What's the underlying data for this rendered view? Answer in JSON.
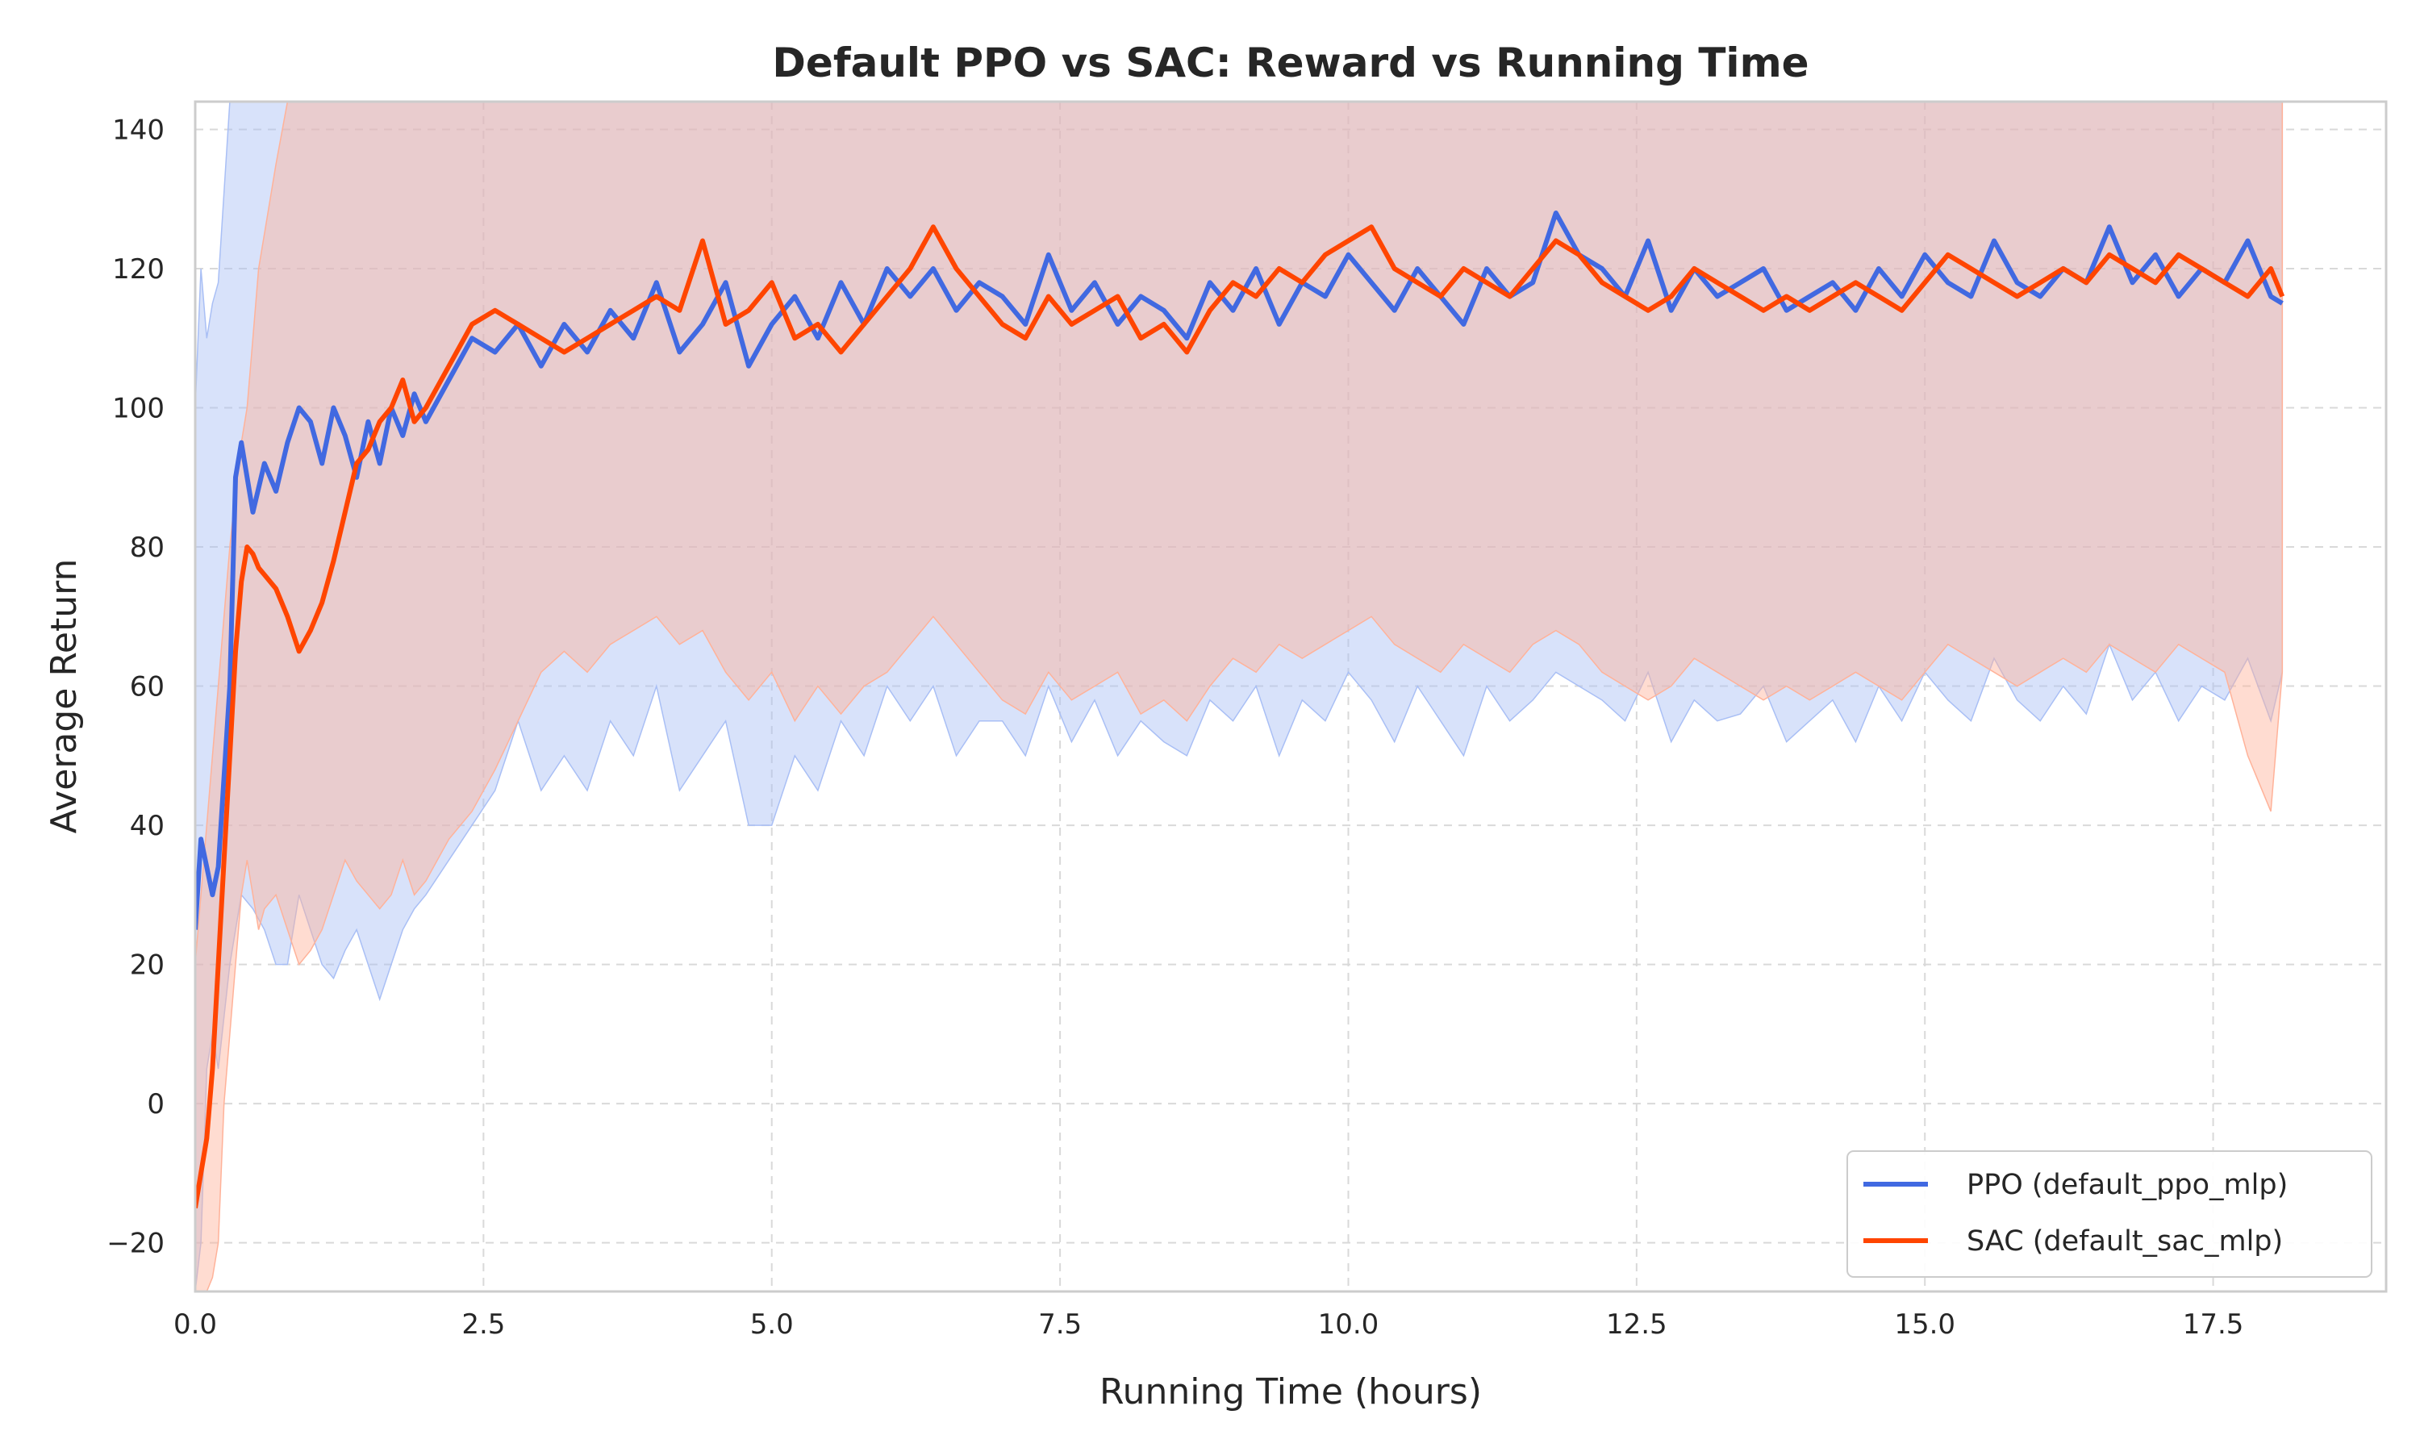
{
  "chart_data": {
    "type": "line",
    "title": "Default PPO vs SAC: Reward vs Running Time",
    "xlabel": "Running Time (hours)",
    "ylabel": "Average Return",
    "xlim": [
      0,
      19
    ],
    "ylim": [
      -27,
      144
    ],
    "xticks": [
      0,
      2.5,
      5,
      7.5,
      10,
      12.5,
      15,
      17.5
    ],
    "xtick_labels": [
      "0.0",
      "2.5",
      "5.0",
      "7.5",
      "10.0",
      "12.5",
      "15.0",
      "17.5"
    ],
    "yticks": [
      -20,
      0,
      20,
      40,
      60,
      80,
      100,
      120,
      140
    ],
    "ytick_labels": [
      "−20",
      "0",
      "20",
      "40",
      "60",
      "80",
      "100",
      "120",
      "140"
    ],
    "grid": true,
    "legend_position": "bottom-right",
    "series": [
      {
        "name": "PPO (default_ppo_mlp)",
        "color": "#4169E1",
        "band_color": "#a9bff5",
        "x": [
          0,
          0.05,
          0.1,
          0.15,
          0.2,
          0.3,
          0.35,
          0.4,
          0.5,
          0.6,
          0.7,
          0.8,
          0.9,
          1.0,
          1.1,
          1.2,
          1.3,
          1.4,
          1.5,
          1.6,
          1.7,
          1.8,
          1.9,
          2.0,
          2.2,
          2.4,
          2.6,
          2.8,
          3.0,
          3.2,
          3.4,
          3.6,
          3.8,
          4.0,
          4.2,
          4.4,
          4.6,
          4.8,
          5.0,
          5.2,
          5.4,
          5.6,
          5.8,
          6.0,
          6.2,
          6.4,
          6.6,
          6.8,
          7.0,
          7.2,
          7.4,
          7.6,
          7.8,
          8.0,
          8.2,
          8.4,
          8.6,
          8.8,
          9.0,
          9.2,
          9.4,
          9.6,
          9.8,
          10.0,
          10.2,
          10.4,
          10.6,
          10.8,
          11.0,
          11.2,
          11.4,
          11.6,
          11.8,
          12.0,
          12.2,
          12.4,
          12.6,
          12.8,
          13.0,
          13.2,
          13.4,
          13.6,
          13.8,
          14.0,
          14.2,
          14.4,
          14.6,
          14.8,
          15.0,
          15.2,
          15.4,
          15.6,
          15.8,
          16.0,
          16.2,
          16.4,
          16.6,
          16.8,
          17.0,
          17.2,
          17.4,
          17.6,
          17.8,
          18.0,
          18.1
        ],
        "mean": [
          25,
          38,
          34,
          30,
          34,
          60,
          90,
          95,
          85,
          92,
          88,
          95,
          100,
          98,
          92,
          100,
          96,
          90,
          98,
          92,
          100,
          96,
          102,
          98,
          104,
          110,
          108,
          112,
          106,
          112,
          108,
          114,
          110,
          118,
          108,
          112,
          118,
          106,
          112,
          116,
          110,
          118,
          112,
          120,
          116,
          120,
          114,
          118,
          116,
          112,
          122,
          114,
          118,
          112,
          116,
          114,
          110,
          118,
          114,
          120,
          112,
          118,
          116,
          122,
          118,
          114,
          120,
          116,
          112,
          120,
          116,
          118,
          128,
          122,
          120,
          116,
          124,
          114,
          120,
          116,
          118,
          120,
          114,
          116,
          118,
          114,
          120,
          116,
          122,
          118,
          116,
          124,
          118,
          116,
          120,
          118,
          126,
          118,
          122,
          116,
          120,
          118,
          124,
          116,
          115
        ],
        "lower": [
          -27,
          -20,
          5,
          10,
          5,
          20,
          25,
          30,
          28,
          25,
          20,
          20,
          30,
          25,
          20,
          18,
          22,
          25,
          20,
          15,
          20,
          25,
          28,
          30,
          35,
          40,
          45,
          55,
          45,
          50,
          45,
          55,
          50,
          60,
          45,
          50,
          55,
          40,
          40,
          50,
          45,
          55,
          50,
          60,
          55,
          60,
          50,
          55,
          55,
          50,
          60,
          52,
          58,
          50,
          55,
          52,
          50,
          58,
          55,
          60,
          50,
          58,
          55,
          62,
          58,
          52,
          60,
          55,
          50,
          60,
          55,
          58,
          62,
          60,
          58,
          55,
          62,
          52,
          58,
          55,
          56,
          60,
          52,
          55,
          58,
          52,
          60,
          55,
          62,
          58,
          55,
          64,
          58,
          55,
          60,
          56,
          66,
          58,
          62,
          55,
          60,
          58,
          64,
          55,
          62
        ],
        "upper": [
          100,
          120,
          110,
          115,
          118,
          144,
          144,
          144,
          144,
          144,
          144,
          144,
          144,
          144,
          144,
          144,
          144,
          144,
          144,
          144,
          144,
          144,
          144,
          144,
          144,
          144,
          144,
          144,
          144,
          144,
          144,
          144,
          144,
          144,
          144,
          144,
          144,
          144,
          144,
          144,
          144,
          144,
          144,
          144,
          144,
          144,
          144,
          144,
          144,
          144,
          144,
          144,
          144,
          144,
          144,
          144,
          144,
          144,
          144,
          144,
          144,
          144,
          144,
          144,
          144,
          144,
          144,
          144,
          144,
          144,
          144,
          144,
          144,
          144,
          144,
          144,
          144,
          144,
          144,
          144,
          144,
          144,
          144,
          144,
          144,
          144,
          144,
          144,
          144,
          144,
          144,
          144,
          144,
          144,
          144,
          144,
          144,
          144,
          144,
          144,
          144,
          144,
          144,
          144,
          144
        ]
      },
      {
        "name": "SAC (default_sac_mlp)",
        "color": "#FF4500",
        "band_color": "#ffb299",
        "x": [
          0,
          0.05,
          0.1,
          0.15,
          0.2,
          0.25,
          0.3,
          0.35,
          0.4,
          0.45,
          0.5,
          0.55,
          0.6,
          0.7,
          0.8,
          0.9,
          1.0,
          1.1,
          1.2,
          1.3,
          1.4,
          1.5,
          1.6,
          1.7,
          1.8,
          1.9,
          2.0,
          2.2,
          2.4,
          2.6,
          2.8,
          3.0,
          3.2,
          3.4,
          3.6,
          3.8,
          4.0,
          4.2,
          4.4,
          4.6,
          4.8,
          5.0,
          5.2,
          5.4,
          5.6,
          5.8,
          6.0,
          6.2,
          6.4,
          6.6,
          6.8,
          7.0,
          7.2,
          7.4,
          7.6,
          7.8,
          8.0,
          8.2,
          8.4,
          8.6,
          8.8,
          9.0,
          9.2,
          9.4,
          9.6,
          9.8,
          10.0,
          10.2,
          10.4,
          10.6,
          10.8,
          11.0,
          11.2,
          11.4,
          11.6,
          11.8,
          12.0,
          12.2,
          12.4,
          12.6,
          12.8,
          13.0,
          13.2,
          13.4,
          13.6,
          13.8,
          14.0,
          14.2,
          14.4,
          14.6,
          14.8,
          15.0,
          15.2,
          15.4,
          15.6,
          15.8,
          16.0,
          16.2,
          16.4,
          16.6,
          16.8,
          17.0,
          17.2,
          17.4,
          17.6,
          17.8,
          18.0,
          18.1
        ],
        "mean": [
          -15,
          -10,
          -5,
          5,
          20,
          35,
          50,
          65,
          75,
          80,
          79,
          77,
          76,
          74,
          70,
          65,
          68,
          72,
          78,
          85,
          92,
          94,
          98,
          100,
          104,
          98,
          100,
          106,
          112,
          114,
          112,
          110,
          108,
          110,
          112,
          114,
          116,
          114,
          124,
          112,
          114,
          118,
          110,
          112,
          108,
          112,
          116,
          120,
          126,
          120,
          116,
          112,
          110,
          116,
          112,
          114,
          116,
          110,
          112,
          108,
          114,
          118,
          116,
          120,
          118,
          122,
          124,
          126,
          120,
          118,
          116,
          120,
          118,
          116,
          120,
          124,
          122,
          118,
          116,
          114,
          116,
          120,
          118,
          116,
          114,
          116,
          114,
          116,
          118,
          116,
          114,
          118,
          122,
          120,
          118,
          116,
          118,
          120,
          118,
          122,
          120,
          118,
          122,
          120,
          118,
          116,
          120,
          116
        ],
        "lower": [
          -27,
          -27,
          -27,
          -25,
          -20,
          0,
          10,
          20,
          30,
          35,
          30,
          25,
          28,
          30,
          25,
          20,
          22,
          25,
          30,
          35,
          32,
          30,
          28,
          30,
          35,
          30,
          32,
          38,
          42,
          48,
          55,
          62,
          65,
          62,
          66,
          68,
          70,
          66,
          68,
          62,
          58,
          62,
          55,
          60,
          56,
          60,
          62,
          66,
          70,
          66,
          62,
          58,
          56,
          62,
          58,
          60,
          62,
          56,
          58,
          55,
          60,
          64,
          62,
          66,
          64,
          66,
          68,
          70,
          66,
          64,
          62,
          66,
          64,
          62,
          66,
          68,
          66,
          62,
          60,
          58,
          60,
          64,
          62,
          60,
          58,
          60,
          58,
          60,
          62,
          60,
          58,
          62,
          66,
          64,
          62,
          60,
          62,
          64,
          62,
          66,
          64,
          62,
          66,
          64,
          62,
          50,
          42,
          62
        ],
        "upper": [
          20,
          30,
          40,
          50,
          60,
          70,
          80,
          88,
          95,
          100,
          110,
          120,
          125,
          135,
          144,
          144,
          144,
          144,
          144,
          144,
          144,
          144,
          144,
          144,
          144,
          144,
          144,
          144,
          144,
          144,
          144,
          144,
          144,
          144,
          144,
          144,
          144,
          144,
          144,
          144,
          144,
          144,
          144,
          144,
          144,
          144,
          144,
          144,
          144,
          144,
          144,
          144,
          144,
          144,
          144,
          144,
          144,
          144,
          144,
          144,
          144,
          144,
          144,
          144,
          144,
          144,
          144,
          144,
          144,
          144,
          144,
          144,
          144,
          144,
          144,
          144,
          144,
          144,
          144,
          144,
          144,
          144,
          144,
          144,
          144,
          144,
          144,
          144,
          144,
          144,
          144,
          144,
          144,
          144,
          144,
          144,
          144,
          144,
          144,
          144,
          144,
          144,
          144,
          144,
          144,
          144,
          144,
          144
        ]
      }
    ]
  }
}
